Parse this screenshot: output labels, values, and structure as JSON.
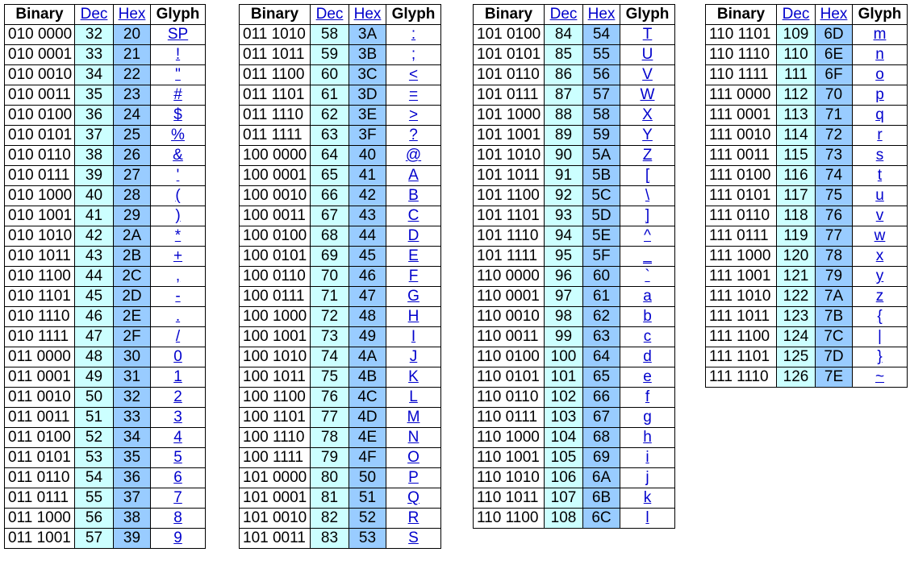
{
  "headers": {
    "binary": "Binary",
    "dec": "Dec",
    "hex": "Hex",
    "glyph": "Glyph"
  },
  "tables": [
    {
      "rows": [
        [
          "010 0000",
          "32",
          "20",
          "SP"
        ],
        [
          "010 0001",
          "33",
          "21",
          "!"
        ],
        [
          "010 0010",
          "34",
          "22",
          "\""
        ],
        [
          "010 0011",
          "35",
          "23",
          "#"
        ],
        [
          "010 0100",
          "36",
          "24",
          "$"
        ],
        [
          "010 0101",
          "37",
          "25",
          "%"
        ],
        [
          "010 0110",
          "38",
          "26",
          "&"
        ],
        [
          "010 0111",
          "39",
          "27",
          "'"
        ],
        [
          "010 1000",
          "40",
          "28",
          "("
        ],
        [
          "010 1001",
          "41",
          "29",
          ")"
        ],
        [
          "010 1010",
          "42",
          "2A",
          "*"
        ],
        [
          "010 1011",
          "43",
          "2B",
          "+"
        ],
        [
          "010 1100",
          "44",
          "2C",
          ","
        ],
        [
          "010 1101",
          "45",
          "2D",
          "-"
        ],
        [
          "010 1110",
          "46",
          "2E",
          "."
        ],
        [
          "010 1111",
          "47",
          "2F",
          "/"
        ],
        [
          "011 0000",
          "48",
          "30",
          "0"
        ],
        [
          "011 0001",
          "49",
          "31",
          "1"
        ],
        [
          "011 0010",
          "50",
          "32",
          "2"
        ],
        [
          "011 0011",
          "51",
          "33",
          "3"
        ],
        [
          "011 0100",
          "52",
          "34",
          "4"
        ],
        [
          "011 0101",
          "53",
          "35",
          "5"
        ],
        [
          "011 0110",
          "54",
          "36",
          "6"
        ],
        [
          "011 0111",
          "55",
          "37",
          "7"
        ],
        [
          "011 1000",
          "56",
          "38",
          "8"
        ],
        [
          "011 1001",
          "57",
          "39",
          "9"
        ]
      ]
    },
    {
      "rows": [
        [
          "011 1010",
          "58",
          "3A",
          ":"
        ],
        [
          "011 1011",
          "59",
          "3B",
          ";"
        ],
        [
          "011 1100",
          "60",
          "3C",
          "<"
        ],
        [
          "011 1101",
          "61",
          "3D",
          "="
        ],
        [
          "011 1110",
          "62",
          "3E",
          ">"
        ],
        [
          "011 1111",
          "63",
          "3F",
          "?"
        ],
        [
          "100 0000",
          "64",
          "40",
          "@"
        ],
        [
          "100 0001",
          "65",
          "41",
          "A"
        ],
        [
          "100 0010",
          "66",
          "42",
          "B"
        ],
        [
          "100 0011",
          "67",
          "43",
          "C"
        ],
        [
          "100 0100",
          "68",
          "44",
          "D"
        ],
        [
          "100 0101",
          "69",
          "45",
          "E"
        ],
        [
          "100 0110",
          "70",
          "46",
          "F"
        ],
        [
          "100 0111",
          "71",
          "47",
          "G"
        ],
        [
          "100 1000",
          "72",
          "48",
          "H"
        ],
        [
          "100 1001",
          "73",
          "49",
          "I"
        ],
        [
          "100 1010",
          "74",
          "4A",
          "J"
        ],
        [
          "100 1011",
          "75",
          "4B",
          "K"
        ],
        [
          "100 1100",
          "76",
          "4C",
          "L"
        ],
        [
          "100 1101",
          "77",
          "4D",
          "M"
        ],
        [
          "100 1110",
          "78",
          "4E",
          "N"
        ],
        [
          "100 1111",
          "79",
          "4F",
          "O"
        ],
        [
          "101 0000",
          "80",
          "50",
          "P"
        ],
        [
          "101 0001",
          "81",
          "51",
          "Q"
        ],
        [
          "101 0010",
          "82",
          "52",
          "R"
        ],
        [
          "101 0011",
          "83",
          "53",
          "S"
        ]
      ]
    },
    {
      "rows": [
        [
          "101 0100",
          "84",
          "54",
          "T"
        ],
        [
          "101 0101",
          "85",
          "55",
          "U"
        ],
        [
          "101 0110",
          "86",
          "56",
          "V"
        ],
        [
          "101 0111",
          "87",
          "57",
          "W"
        ],
        [
          "101 1000",
          "88",
          "58",
          "X"
        ],
        [
          "101 1001",
          "89",
          "59",
          "Y"
        ],
        [
          "101 1010",
          "90",
          "5A",
          "Z"
        ],
        [
          "101 1011",
          "91",
          "5B",
          "["
        ],
        [
          "101 1100",
          "92",
          "5C",
          "\\"
        ],
        [
          "101 1101",
          "93",
          "5D",
          "]"
        ],
        [
          "101 1110",
          "94",
          "5E",
          "^"
        ],
        [
          "101 1111",
          "95",
          "5F",
          "_"
        ],
        [
          "110 0000",
          "96",
          "60",
          "`"
        ],
        [
          "110 0001",
          "97",
          "61",
          "a"
        ],
        [
          "110 0010",
          "98",
          "62",
          "b"
        ],
        [
          "110 0011",
          "99",
          "63",
          "c"
        ],
        [
          "110 0100",
          "100",
          "64",
          "d"
        ],
        [
          "110 0101",
          "101",
          "65",
          "e"
        ],
        [
          "110 0110",
          "102",
          "66",
          "f"
        ],
        [
          "110 0111",
          "103",
          "67",
          "g"
        ],
        [
          "110 1000",
          "104",
          "68",
          "h"
        ],
        [
          "110 1001",
          "105",
          "69",
          "i"
        ],
        [
          "110 1010",
          "106",
          "6A",
          "j"
        ],
        [
          "110 1011",
          "107",
          "6B",
          "k"
        ],
        [
          "110 1100",
          "108",
          "6C",
          "l"
        ]
      ]
    },
    {
      "rows": [
        [
          "110 1101",
          "109",
          "6D",
          "m"
        ],
        [
          "110 1110",
          "110",
          "6E",
          "n"
        ],
        [
          "110 1111",
          "111",
          "6F",
          "o"
        ],
        [
          "111 0000",
          "112",
          "70",
          "p"
        ],
        [
          "111 0001",
          "113",
          "71",
          "q"
        ],
        [
          "111 0010",
          "114",
          "72",
          "r"
        ],
        [
          "111 0011",
          "115",
          "73",
          "s"
        ],
        [
          "111 0100",
          "116",
          "74",
          "t"
        ],
        [
          "111 0101",
          "117",
          "75",
          "u"
        ],
        [
          "111 0110",
          "118",
          "76",
          "v"
        ],
        [
          "111 0111",
          "119",
          "77",
          "w"
        ],
        [
          "111 1000",
          "120",
          "78",
          "x"
        ],
        [
          "111 1001",
          "121",
          "79",
          "y"
        ],
        [
          "111 1010",
          "122",
          "7A",
          "z"
        ],
        [
          "111 1011",
          "123",
          "7B",
          "{"
        ],
        [
          "111 1100",
          "124",
          "7C",
          "|"
        ],
        [
          "111 1101",
          "125",
          "7D",
          "}"
        ],
        [
          "111 1110",
          "126",
          "7E",
          "~"
        ]
      ]
    }
  ],
  "colors": {
    "dec_bg": "#ccffff",
    "hex_bg": "#99ccff",
    "link": "#0000cc"
  }
}
